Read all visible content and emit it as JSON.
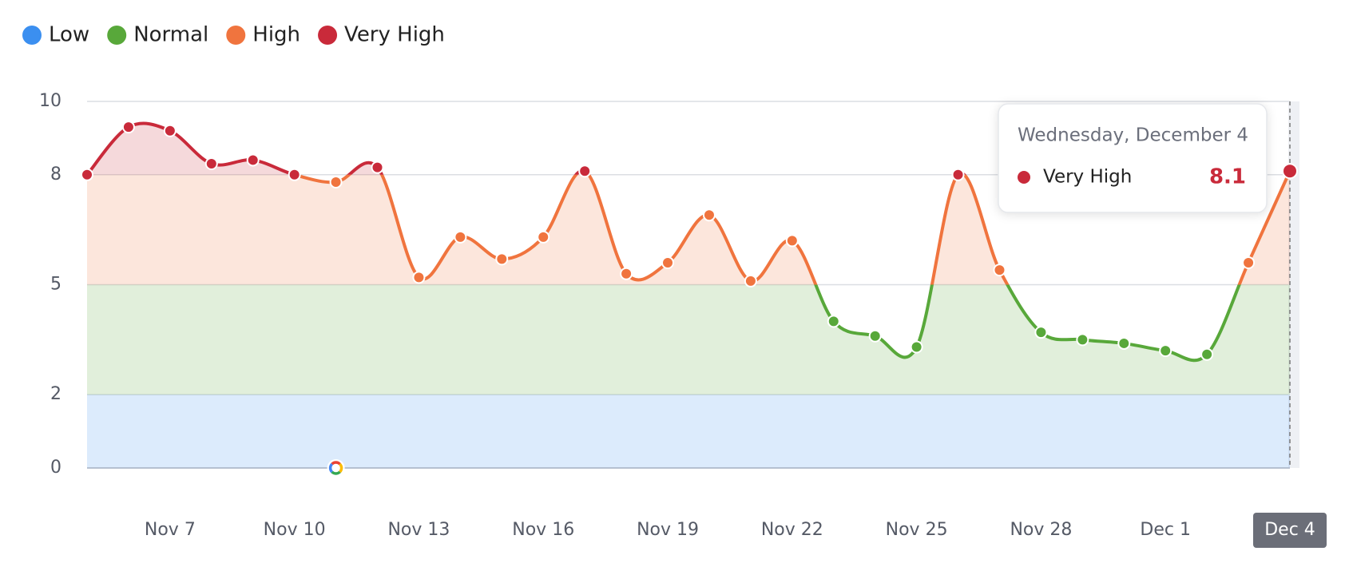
{
  "chart_data": {
    "type": "line",
    "bands": [
      {
        "name": "Low",
        "color": "#3b8ff0",
        "range": [
          0,
          2
        ]
      },
      {
        "name": "Normal",
        "color": "#58a83a",
        "range": [
          2,
          5
        ]
      },
      {
        "name": "High",
        "color": "#f0743e",
        "range": [
          5,
          8
        ]
      },
      {
        "name": "Very High",
        "color": "#c92a3a",
        "range": [
          8,
          10
        ]
      }
    ],
    "categories": [
      null,
      null,
      "Nov 7",
      null,
      null,
      "Nov 10",
      null,
      null,
      "Nov 13",
      null,
      null,
      "Nov 16",
      null,
      null,
      "Nov 19",
      null,
      null,
      "Nov 22",
      null,
      null,
      "Nov 25",
      null,
      null,
      "Nov 28",
      null,
      null,
      "Dec 1",
      null,
      null,
      "Dec 4"
    ],
    "values": [
      8.0,
      9.3,
      9.2,
      8.3,
      8.4,
      8.0,
      7.8,
      8.2,
      5.2,
      6.3,
      5.7,
      6.3,
      8.1,
      5.3,
      5.6,
      6.9,
      5.1,
      6.2,
      4.0,
      3.6,
      3.3,
      8.0,
      5.4,
      3.7,
      3.5,
      3.4,
      3.2,
      3.1,
      5.6,
      8.1
    ],
    "ylim": [
      0,
      10
    ],
    "yticks": [
      0,
      2,
      5,
      8,
      10
    ],
    "grid": true,
    "tooltip": {
      "title": "Wednesday, December 4"
    }
  }
}
